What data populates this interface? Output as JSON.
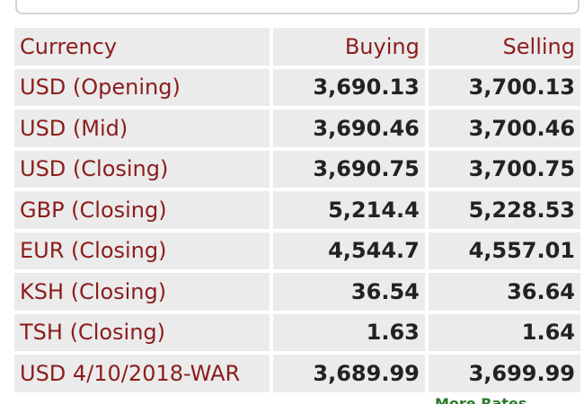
{
  "table": {
    "headers": {
      "currency": "Currency",
      "buying": "Buying",
      "selling": "Selling"
    },
    "rows": [
      {
        "currency": "USD (Opening)",
        "buying": "3,690.13",
        "selling": "3,700.13"
      },
      {
        "currency": "USD (Mid)",
        "buying": "3,690.46",
        "selling": "3,700.46"
      },
      {
        "currency": "USD (Closing)",
        "buying": "3,690.75",
        "selling": "3,700.75"
      },
      {
        "currency": "GBP (Closing)",
        "buying": "5,214.4",
        "selling": "5,228.53"
      },
      {
        "currency": "EUR (Closing)",
        "buying": "4,544.7",
        "selling": "4,557.01"
      },
      {
        "currency": "KSH (Closing)",
        "buying": "36.54",
        "selling": "36.64"
      },
      {
        "currency": "TSH (Closing)",
        "buying": "1.63",
        "selling": "1.64"
      },
      {
        "currency": "USD 4/10/2018-WAR",
        "buying": "3,689.99",
        "selling": "3,699.99"
      }
    ]
  },
  "footer": {
    "more_link_label": "More Rates"
  },
  "colors": {
    "header_text": "#8c1c1c",
    "cell_background": "#ebebeb",
    "value_text": "#222222",
    "link_text": "#2a7a2a"
  }
}
